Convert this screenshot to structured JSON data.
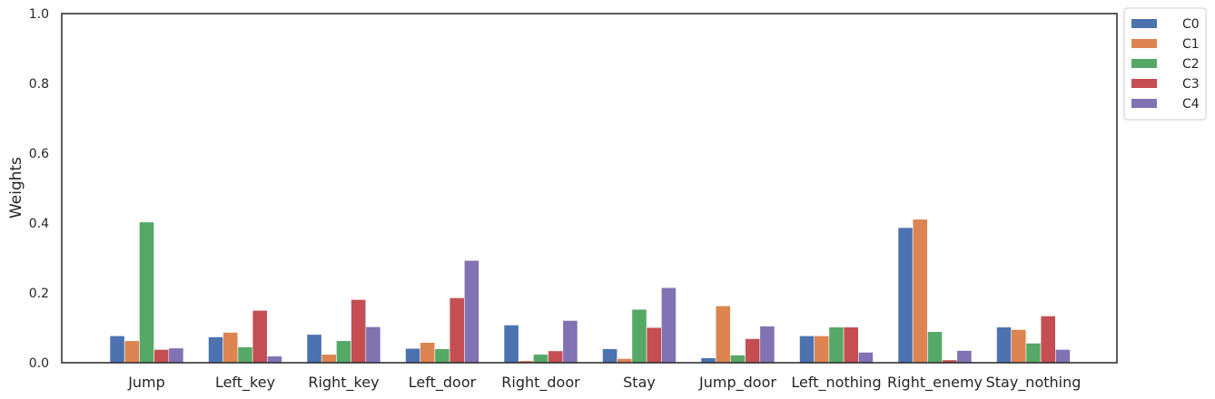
{
  "chart_data": {
    "type": "bar",
    "title": "",
    "xlabel": "",
    "ylabel": "Weights",
    "ylim": [
      0,
      1.0
    ],
    "yticks": [
      "0.0",
      "0.2",
      "0.4",
      "0.6",
      "0.8",
      "1.0"
    ],
    "grid": false,
    "legend_position": "outside-top-right",
    "categories": [
      "Jump",
      "Left_key",
      "Right_key",
      "Left_door",
      "Right_door",
      "Stay",
      "Jump_door",
      "Left_nothing",
      "Right_enemy",
      "Stay_nothing"
    ],
    "series": [
      {
        "name": "C0",
        "color": "#4c72b0",
        "values": [
          0.077,
          0.074,
          0.081,
          0.041,
          0.108,
          0.04,
          0.014,
          0.077,
          0.387,
          0.102
        ]
      },
      {
        "name": "C1",
        "color": "#dd8452",
        "values": [
          0.063,
          0.087,
          0.024,
          0.058,
          0.006,
          0.012,
          0.163,
          0.077,
          0.411,
          0.095
        ]
      },
      {
        "name": "C2",
        "color": "#55a868",
        "values": [
          0.403,
          0.045,
          0.063,
          0.04,
          0.024,
          0.153,
          0.022,
          0.102,
          0.089,
          0.056
        ]
      },
      {
        "name": "C3",
        "color": "#c44e52",
        "values": [
          0.038,
          0.15,
          0.181,
          0.186,
          0.034,
          0.101,
          0.069,
          0.102,
          0.008,
          0.134
        ]
      },
      {
        "name": "C4",
        "color": "#8172b3",
        "values": [
          0.042,
          0.019,
          0.103,
          0.293,
          0.121,
          0.215,
          0.105,
          0.03,
          0.035,
          0.038
        ]
      }
    ]
  }
}
